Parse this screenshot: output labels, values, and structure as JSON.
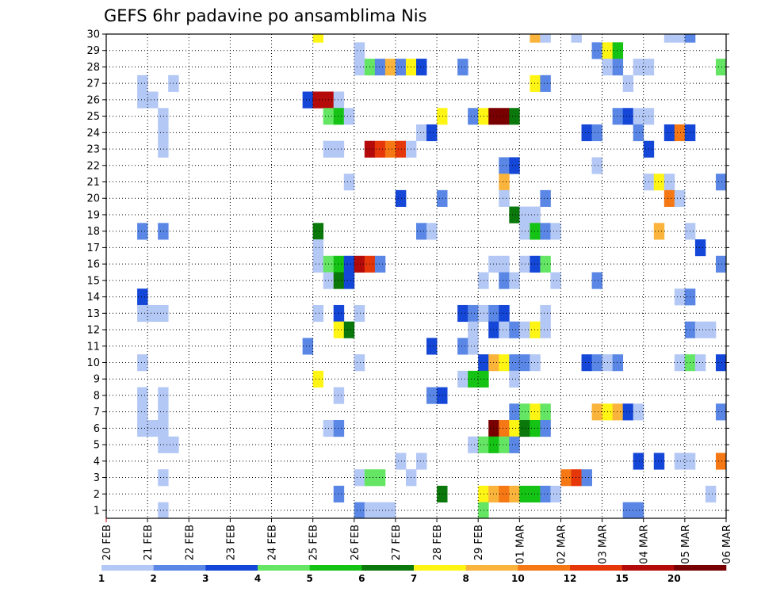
{
  "chart_data": {
    "type": "heatmap",
    "title": "GEFS 6hr padavine po ansamblima Nis",
    "x_tick_labels": [
      "20 FEB",
      "21 FEB",
      "22 FEB",
      "23 FEB",
      "24 FEB",
      "25 FEB",
      "26 FEB",
      "27 FEB",
      "28 FEB",
      "29 FEB",
      "01 MAR",
      "02 MAR",
      "03 MAR",
      "04 MAR",
      "05 MAR",
      "06 MAR"
    ],
    "y_tick_labels": [
      "1",
      "2",
      "3",
      "4",
      "5",
      "6",
      "7",
      "8",
      "9",
      "10",
      "11",
      "12",
      "13",
      "14",
      "15",
      "16",
      "17",
      "18",
      "19",
      "20",
      "21",
      "22",
      "23",
      "24",
      "25",
      "26",
      "27",
      "28",
      "29",
      "30"
    ],
    "x_steps_per_day": 4,
    "ylim": [
      0,
      30
    ],
    "grid": true,
    "color_classes": [
      {
        "level": 1,
        "color": "#b4c8f5"
      },
      {
        "level": 2,
        "color": "#5a87e6"
      },
      {
        "level": 3,
        "color": "#1446d7"
      },
      {
        "level": 4,
        "color": "#64e664"
      },
      {
        "level": 5,
        "color": "#14c314"
      },
      {
        "level": 6,
        "color": "#0a780a"
      },
      {
        "level": 7,
        "color": "#fff514"
      },
      {
        "level": 8,
        "color": "#fab43c"
      },
      {
        "level": 10,
        "color": "#f57814"
      },
      {
        "level": 12,
        "color": "#e6370a"
      },
      {
        "level": 15,
        "color": "#b40a0a"
      },
      {
        "level": 20,
        "color": "#780000"
      }
    ],
    "legend_labels": [
      "1",
      "2",
      "3",
      "4",
      "5",
      "6",
      "7",
      "8",
      "10",
      "12",
      "15",
      "20"
    ],
    "cells": [
      [
        41,
        30,
        8
      ],
      [
        42,
        30,
        1
      ],
      [
        20,
        30,
        7
      ],
      [
        45,
        30,
        1
      ],
      [
        54,
        30,
        1
      ],
      [
        55,
        30,
        1
      ],
      [
        56,
        30,
        2
      ],
      [
        47,
        29,
        2
      ],
      [
        48,
        29,
        7
      ],
      [
        49,
        29,
        5
      ],
      [
        24,
        29,
        1
      ],
      [
        24,
        28,
        1
      ],
      [
        25,
        28,
        4
      ],
      [
        26,
        28,
        2
      ],
      [
        27,
        28,
        8
      ],
      [
        28,
        28,
        2
      ],
      [
        29,
        28,
        7
      ],
      [
        30,
        28,
        3
      ],
      [
        34,
        28,
        2
      ],
      [
        48,
        28,
        1
      ],
      [
        49,
        28,
        2
      ],
      [
        51,
        28,
        1
      ],
      [
        52,
        28,
        1
      ],
      [
        59,
        28,
        4
      ],
      [
        3,
        27,
        1
      ],
      [
        6,
        27,
        1
      ],
      [
        41,
        27,
        7
      ],
      [
        42,
        27,
        2
      ],
      [
        50,
        27,
        1
      ],
      [
        3,
        26,
        1
      ],
      [
        4,
        26,
        1
      ],
      [
        19,
        26,
        3
      ],
      [
        20,
        26,
        15
      ],
      [
        21,
        26,
        15
      ],
      [
        22,
        26,
        1
      ],
      [
        5,
        25,
        1
      ],
      [
        21,
        25,
        4
      ],
      [
        22,
        25,
        5
      ],
      [
        23,
        25,
        1
      ],
      [
        32,
        25,
        7
      ],
      [
        35,
        25,
        2
      ],
      [
        36,
        25,
        7
      ],
      [
        37,
        25,
        20
      ],
      [
        38,
        25,
        20
      ],
      [
        39,
        25,
        6
      ],
      [
        49,
        25,
        2
      ],
      [
        50,
        25,
        3
      ],
      [
        51,
        25,
        1
      ],
      [
        52,
        25,
        1
      ],
      [
        5,
        24,
        1
      ],
      [
        30,
        24,
        1
      ],
      [
        31,
        24,
        3
      ],
      [
        46,
        24,
        3
      ],
      [
        47,
        24,
        2
      ],
      [
        51,
        24,
        2
      ],
      [
        54,
        24,
        3
      ],
      [
        55,
        24,
        10
      ],
      [
        56,
        24,
        3
      ],
      [
        5,
        23,
        1
      ],
      [
        21,
        23,
        1
      ],
      [
        22,
        23,
        1
      ],
      [
        25,
        23,
        15
      ],
      [
        26,
        23,
        12
      ],
      [
        27,
        23,
        10
      ],
      [
        28,
        23,
        12
      ],
      [
        29,
        23,
        1
      ],
      [
        52,
        23,
        3
      ],
      [
        38,
        22,
        2
      ],
      [
        39,
        22,
        3
      ],
      [
        47,
        22,
        1
      ],
      [
        23,
        21,
        1
      ],
      [
        38,
        21,
        8
      ],
      [
        52,
        21,
        1
      ],
      [
        53,
        21,
        7
      ],
      [
        54,
        21,
        1
      ],
      [
        59,
        21,
        2
      ],
      [
        28,
        20,
        3
      ],
      [
        32,
        20,
        2
      ],
      [
        38,
        20,
        1
      ],
      [
        42,
        20,
        2
      ],
      [
        54,
        20,
        10
      ],
      [
        55,
        20,
        1
      ],
      [
        39,
        19,
        6
      ],
      [
        40,
        19,
        1
      ],
      [
        41,
        19,
        1
      ],
      [
        3,
        18,
        2
      ],
      [
        5,
        18,
        2
      ],
      [
        20,
        18,
        6
      ],
      [
        30,
        18,
        2
      ],
      [
        31,
        18,
        1
      ],
      [
        40,
        18,
        1
      ],
      [
        41,
        18,
        5
      ],
      [
        42,
        18,
        2
      ],
      [
        43,
        18,
        1
      ],
      [
        53,
        18,
        8
      ],
      [
        56,
        18,
        1
      ],
      [
        20,
        17,
        1
      ],
      [
        57,
        17,
        3
      ],
      [
        20,
        16,
        1
      ],
      [
        21,
        16,
        4
      ],
      [
        22,
        16,
        5
      ],
      [
        23,
        16,
        3
      ],
      [
        24,
        16,
        15
      ],
      [
        25,
        16,
        12
      ],
      [
        26,
        16,
        2
      ],
      [
        37,
        16,
        1
      ],
      [
        38,
        16,
        1
      ],
      [
        40,
        16,
        1
      ],
      [
        41,
        16,
        3
      ],
      [
        42,
        16,
        4
      ],
      [
        59,
        16,
        2
      ],
      [
        21,
        15,
        1
      ],
      [
        22,
        15,
        6
      ],
      [
        23,
        15,
        3
      ],
      [
        36,
        15,
        1
      ],
      [
        38,
        15,
        2
      ],
      [
        39,
        15,
        1
      ],
      [
        43,
        15,
        1
      ],
      [
        47,
        15,
        2
      ],
      [
        3,
        14,
        3
      ],
      [
        55,
        14,
        1
      ],
      [
        56,
        14,
        2
      ],
      [
        3,
        13,
        1
      ],
      [
        4,
        13,
        1
      ],
      [
        5,
        13,
        1
      ],
      [
        20,
        13,
        1
      ],
      [
        22,
        13,
        3
      ],
      [
        24,
        13,
        1
      ],
      [
        34,
        13,
        3
      ],
      [
        35,
        13,
        2
      ],
      [
        36,
        13,
        1
      ],
      [
        37,
        13,
        2
      ],
      [
        38,
        13,
        3
      ],
      [
        42,
        13,
        1
      ],
      [
        22,
        12,
        7
      ],
      [
        23,
        12,
        6
      ],
      [
        35,
        12,
        1
      ],
      [
        37,
        12,
        3
      ],
      [
        38,
        12,
        1
      ],
      [
        39,
        12,
        2
      ],
      [
        40,
        12,
        1
      ],
      [
        41,
        12,
        7
      ],
      [
        42,
        12,
        1
      ],
      [
        56,
        12,
        2
      ],
      [
        57,
        12,
        1
      ],
      [
        58,
        12,
        1
      ],
      [
        19,
        11,
        2
      ],
      [
        31,
        11,
        3
      ],
      [
        34,
        11,
        2
      ],
      [
        35,
        11,
        1
      ],
      [
        3,
        10,
        1
      ],
      [
        24,
        10,
        1
      ],
      [
        36,
        10,
        3
      ],
      [
        37,
        10,
        8
      ],
      [
        38,
        10,
        7
      ],
      [
        39,
        10,
        2
      ],
      [
        40,
        10,
        2
      ],
      [
        41,
        10,
        1
      ],
      [
        46,
        10,
        3
      ],
      [
        47,
        10,
        2
      ],
      [
        48,
        10,
        1
      ],
      [
        49,
        10,
        2
      ],
      [
        55,
        10,
        1
      ],
      [
        56,
        10,
        4
      ],
      [
        57,
        10,
        1
      ],
      [
        59,
        10,
        3
      ],
      [
        20,
        9,
        7
      ],
      [
        34,
        9,
        1
      ],
      [
        35,
        9,
        5
      ],
      [
        36,
        9,
        5
      ],
      [
        39,
        9,
        1
      ],
      [
        3,
        8,
        1
      ],
      [
        5,
        8,
        1
      ],
      [
        22,
        8,
        1
      ],
      [
        31,
        8,
        2
      ],
      [
        32,
        8,
        3
      ],
      [
        3,
        7,
        1
      ],
      [
        5,
        7,
        1
      ],
      [
        39,
        7,
        2
      ],
      [
        40,
        7,
        4
      ],
      [
        41,
        7,
        7
      ],
      [
        42,
        7,
        4
      ],
      [
        47,
        7,
        8
      ],
      [
        48,
        7,
        7
      ],
      [
        49,
        7,
        8
      ],
      [
        50,
        7,
        3
      ],
      [
        51,
        7,
        1
      ],
      [
        59,
        7,
        2
      ],
      [
        3,
        6,
        1
      ],
      [
        4,
        6,
        1
      ],
      [
        5,
        6,
        1
      ],
      [
        21,
        6,
        1
      ],
      [
        22,
        6,
        2
      ],
      [
        37,
        6,
        20
      ],
      [
        38,
        6,
        10
      ],
      [
        39,
        6,
        7
      ],
      [
        40,
        6,
        6
      ],
      [
        41,
        6,
        5
      ],
      [
        42,
        6,
        2
      ],
      [
        5,
        5,
        1
      ],
      [
        6,
        5,
        1
      ],
      [
        35,
        5,
        1
      ],
      [
        36,
        5,
        4
      ],
      [
        37,
        5,
        5
      ],
      [
        38,
        5,
        4
      ],
      [
        39,
        5,
        2
      ],
      [
        28,
        4,
        1
      ],
      [
        30,
        4,
        1
      ],
      [
        51,
        4,
        3
      ],
      [
        53,
        4,
        3
      ],
      [
        55,
        4,
        1
      ],
      [
        56,
        4,
        1
      ],
      [
        59,
        4,
        10
      ],
      [
        5,
        3,
        1
      ],
      [
        24,
        3,
        1
      ],
      [
        25,
        3,
        4
      ],
      [
        26,
        3,
        4
      ],
      [
        29,
        3,
        1
      ],
      [
        44,
        3,
        10
      ],
      [
        45,
        3,
        12
      ],
      [
        46,
        3,
        2
      ],
      [
        22,
        2,
        2
      ],
      [
        32,
        2,
        6
      ],
      [
        36,
        2,
        7
      ],
      [
        37,
        2,
        8
      ],
      [
        38,
        2,
        10
      ],
      [
        39,
        2,
        8
      ],
      [
        40,
        2,
        5
      ],
      [
        41,
        2,
        5
      ],
      [
        42,
        2,
        2
      ],
      [
        43,
        2,
        1
      ],
      [
        58,
        2,
        1
      ],
      [
        5,
        1,
        1
      ],
      [
        24,
        1,
        2
      ],
      [
        25,
        1,
        1
      ],
      [
        26,
        1,
        1
      ],
      [
        27,
        1,
        1
      ],
      [
        36,
        1,
        4
      ],
      [
        50,
        1,
        2
      ],
      [
        51,
        1,
        2
      ]
    ]
  }
}
